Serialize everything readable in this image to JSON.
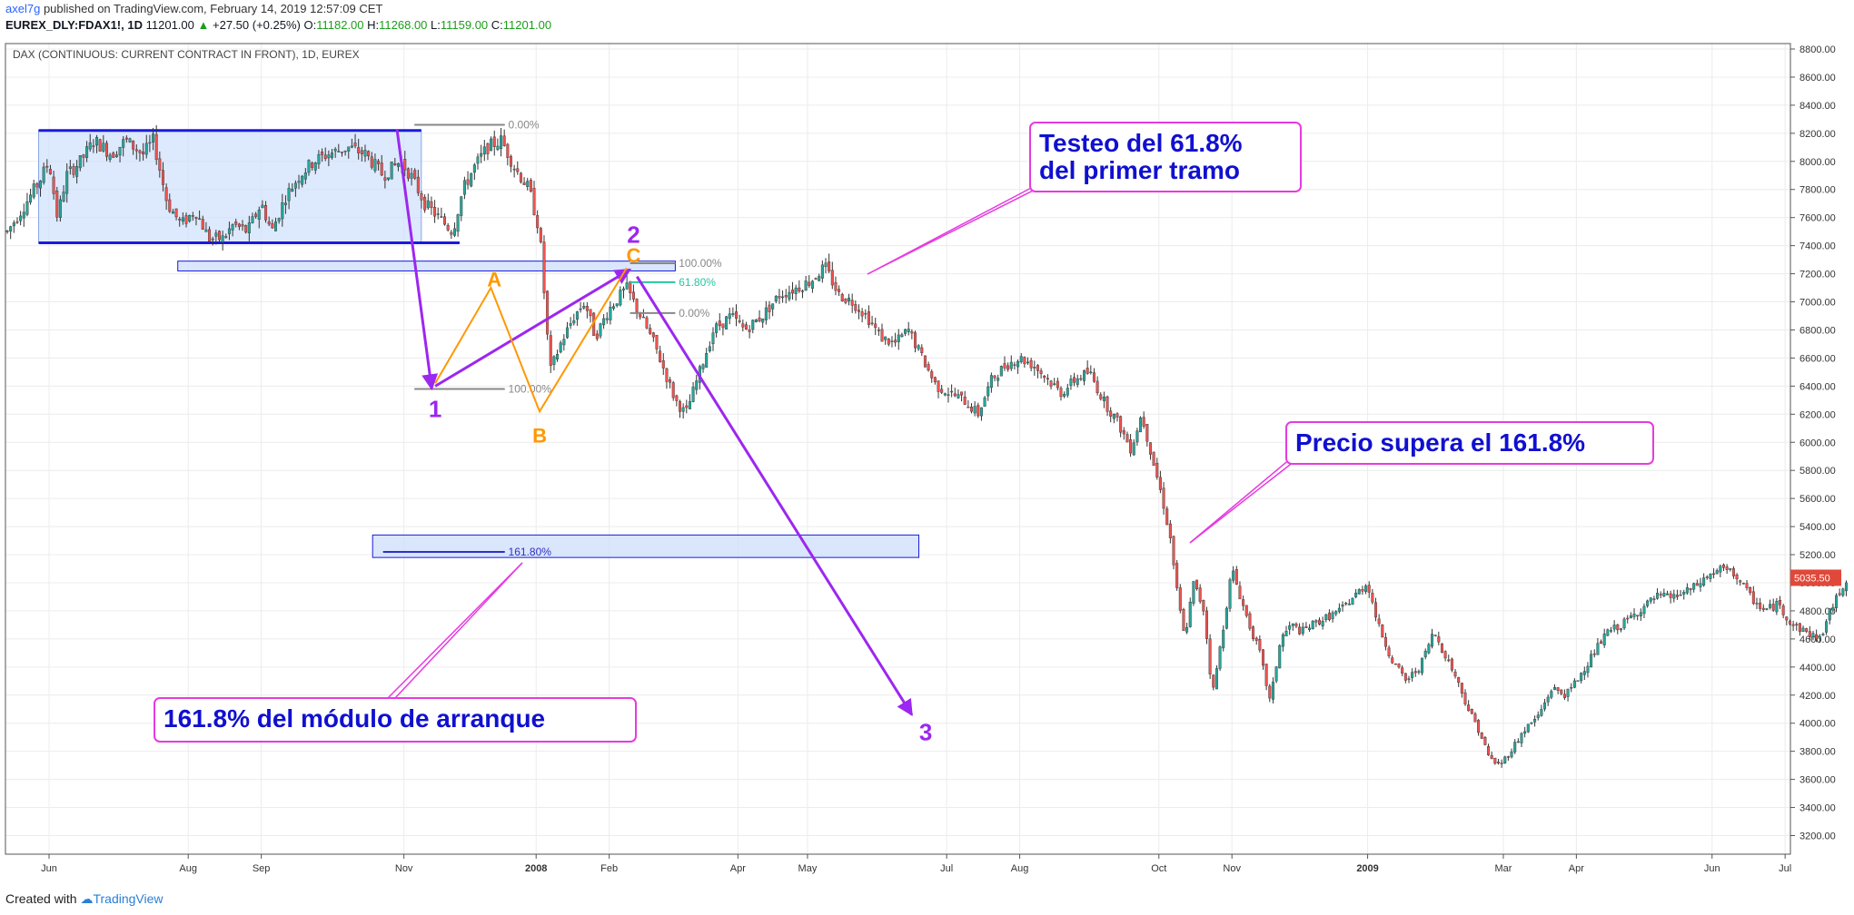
{
  "header": {
    "author": "axel7g",
    "published": "published on TradingView.com, February 14, 2019 12:57:09 CET",
    "symbol": "EUREX_DLY:FDAX1!, 1D",
    "last": "11201.00",
    "change": "+27.50 (+0.25%)",
    "o_label": "O:",
    "o_val": "11182.00",
    "h_label": "H:",
    "h_val": "11268.00",
    "l_label": "L:",
    "l_val": "11159.00",
    "c_label": "C:",
    "c_val": "11201.00"
  },
  "footer": {
    "created_with": "Created with",
    "brand": "TradingView"
  },
  "chart_data": {
    "type": "candlestick",
    "title": "DAX (CONTINUOUS: CURRENT CONTRACT IN FRONT), 1D, EUREX",
    "y_ticks": [
      3200,
      3400,
      3600,
      3800,
      4000,
      4200,
      4400,
      4600,
      4800,
      5000,
      5200,
      5400,
      5600,
      5800,
      6000,
      6200,
      6400,
      6600,
      6800,
      7000,
      7200,
      7400,
      7600,
      7800,
      8000,
      8200,
      8400,
      8600,
      8800
    ],
    "ylim": [
      2900,
      8950
    ],
    "x_ticks": [
      {
        "label": "Jun",
        "t": 0.0
      },
      {
        "label": "Aug",
        "t": 2.0
      },
      {
        "label": "Sep",
        "t": 3.05
      },
      {
        "label": "Nov",
        "t": 5.1
      },
      {
        "label": "2008",
        "t": 7.0
      },
      {
        "label": "Feb",
        "t": 8.05
      },
      {
        "label": "Apr",
        "t": 9.9
      },
      {
        "label": "May",
        "t": 10.9
      },
      {
        "label": "Jul",
        "t": 12.9
      },
      {
        "label": "Aug",
        "t": 13.95
      },
      {
        "label": "Oct",
        "t": 15.95
      },
      {
        "label": "Nov",
        "t": 17.0
      },
      {
        "label": "2009",
        "t": 18.95
      },
      {
        "label": "Mar",
        "t": 20.9
      },
      {
        "label": "Apr",
        "t": 21.95
      },
      {
        "label": "Jun",
        "t": 23.9
      },
      {
        "label": "Jul",
        "t": 24.95
      }
    ],
    "price_path": [
      [
        -0.6,
        7500
      ],
      [
        -0.4,
        7650
      ],
      [
        -0.15,
        7850
      ],
      [
        0.0,
        8000
      ],
      [
        0.12,
        7600
      ],
      [
        0.25,
        7900
      ],
      [
        0.45,
        8000
      ],
      [
        0.65,
        8150
      ],
      [
        0.9,
        8050
      ],
      [
        1.1,
        8150
      ],
      [
        1.35,
        8050
      ],
      [
        1.5,
        8150
      ],
      [
        1.7,
        7700
      ],
      [
        1.9,
        7550
      ],
      [
        2.1,
        7650
      ],
      [
        2.3,
        7450
      ],
      [
        2.5,
        7450
      ],
      [
        2.65,
        7550
      ],
      [
        2.85,
        7500
      ],
      [
        3.05,
        7700
      ],
      [
        3.2,
        7500
      ],
      [
        3.4,
        7750
      ],
      [
        3.6,
        7900
      ],
      [
        3.8,
        8000
      ],
      [
        4.0,
        8050
      ],
      [
        4.3,
        8100
      ],
      [
        4.55,
        8050
      ],
      [
        4.8,
        7900
      ],
      [
        5.05,
        8000
      ],
      [
        5.2,
        7900
      ],
      [
        5.4,
        7700
      ],
      [
        5.6,
        7600
      ],
      [
        5.8,
        7500
      ],
      [
        5.95,
        7800
      ],
      [
        6.1,
        7950
      ],
      [
        6.3,
        8100
      ],
      [
        6.5,
        8150
      ],
      [
        6.7,
        7950
      ],
      [
        6.9,
        7800
      ],
      [
        7.05,
        7500
      ],
      [
        7.2,
        6500
      ],
      [
        7.35,
        6700
      ],
      [
        7.55,
        6900
      ],
      [
        7.7,
        7000
      ],
      [
        7.85,
        6750
      ],
      [
        8.05,
        6950
      ],
      [
        8.3,
        7100
      ],
      [
        8.5,
        6900
      ],
      [
        8.7,
        6700
      ],
      [
        8.85,
        6500
      ],
      [
        9.0,
        6300
      ],
      [
        9.15,
        6200
      ],
      [
        9.35,
        6500
      ],
      [
        9.55,
        6800
      ],
      [
        9.8,
        6900
      ],
      [
        10.0,
        6800
      ],
      [
        10.25,
        6900
      ],
      [
        10.5,
        7050
      ],
      [
        10.75,
        7100
      ],
      [
        10.95,
        7150
      ],
      [
        11.15,
        7250
      ],
      [
        11.35,
        7050
      ],
      [
        11.55,
        7000
      ],
      [
        11.75,
        6900
      ],
      [
        11.95,
        6750
      ],
      [
        12.15,
        6700
      ],
      [
        12.35,
        6800
      ],
      [
        12.55,
        6600
      ],
      [
        12.75,
        6400
      ],
      [
        12.95,
        6350
      ],
      [
        13.15,
        6300
      ],
      [
        13.35,
        6200
      ],
      [
        13.55,
        6450
      ],
      [
        13.75,
        6550
      ],
      [
        13.95,
        6600
      ],
      [
        14.15,
        6550
      ],
      [
        14.35,
        6450
      ],
      [
        14.55,
        6350
      ],
      [
        14.75,
        6450
      ],
      [
        14.95,
        6500
      ],
      [
        15.15,
        6300
      ],
      [
        15.35,
        6150
      ],
      [
        15.55,
        5950
      ],
      [
        15.7,
        6200
      ],
      [
        15.85,
        5900
      ],
      [
        16.0,
        5600
      ],
      [
        16.12,
        5300
      ],
      [
        16.22,
        4900
      ],
      [
        16.32,
        4600
      ],
      [
        16.45,
        5000
      ],
      [
        16.6,
        4800
      ],
      [
        16.72,
        4200
      ],
      [
        16.85,
        4600
      ],
      [
        17.0,
        5100
      ],
      [
        17.12,
        4900
      ],
      [
        17.25,
        4700
      ],
      [
        17.4,
        4500
      ],
      [
        17.55,
        4150
      ],
      [
        17.7,
        4600
      ],
      [
        17.85,
        4700
      ],
      [
        18.0,
        4650
      ],
      [
        18.15,
        4700
      ],
      [
        18.35,
        4750
      ],
      [
        18.55,
        4800
      ],
      [
        18.75,
        4900
      ],
      [
        18.95,
        5000
      ],
      [
        19.1,
        4700
      ],
      [
        19.3,
        4450
      ],
      [
        19.5,
        4300
      ],
      [
        19.7,
        4400
      ],
      [
        19.9,
        4650
      ],
      [
        20.05,
        4500
      ],
      [
        20.2,
        4350
      ],
      [
        20.4,
        4100
      ],
      [
        20.55,
        3950
      ],
      [
        20.7,
        3750
      ],
      [
        20.85,
        3700
      ],
      [
        21.0,
        3800
      ],
      [
        21.2,
        3950
      ],
      [
        21.4,
        4050
      ],
      [
        21.6,
        4250
      ],
      [
        21.8,
        4200
      ],
      [
        21.95,
        4300
      ],
      [
        22.2,
        4500
      ],
      [
        22.4,
        4650
      ],
      [
        22.6,
        4700
      ],
      [
        22.85,
        4800
      ],
      [
        23.1,
        4900
      ],
      [
        23.35,
        4900
      ],
      [
        23.6,
        4950
      ],
      [
        23.85,
        5050
      ],
      [
        24.05,
        5100
      ],
      [
        24.25,
        5050
      ],
      [
        24.45,
        4900
      ],
      [
        24.65,
        4800
      ],
      [
        24.85,
        4850
      ],
      [
        25.05,
        4700
      ],
      [
        25.25,
        4650
      ],
      [
        25.45,
        4600
      ],
      [
        25.6,
        4800
      ],
      [
        25.75,
        4950
      ],
      [
        25.85,
        5040
      ]
    ],
    "last_price_label": "5035.50",
    "fib_levels": [
      {
        "label": "0.00%",
        "price": 8260
      },
      {
        "label": "100.00%",
        "price": 6380
      },
      {
        "label": "161.80%",
        "price": 5220
      },
      {
        "label": "100.00%",
        "price": 7275
      },
      {
        "label": "61.80%",
        "price": 7140
      },
      {
        "label": "0.00%",
        "price": 6920
      }
    ],
    "wave_labels": [
      "1",
      "2",
      "3"
    ],
    "abc_labels": [
      "A",
      "B",
      "C"
    ],
    "annotations": [
      {
        "id": "testeo",
        "lines": [
          "Testeo del 61.8%",
          "del primer tramo"
        ]
      },
      {
        "id": "supera",
        "lines": [
          "Precio supera el 161.8%"
        ]
      },
      {
        "id": "arranque",
        "lines": [
          "161.8% del módulo de arranque"
        ]
      }
    ],
    "colors": {
      "up": "#26a69a",
      "down": "#ef5350",
      "body": "#333333",
      "wave": "#9c27f0",
      "abc": "#ff9800",
      "box_fill": "#cfe0fb",
      "box_stroke": "#1a1adb",
      "callout_border": "#e53be0",
      "callout_text": "#1010d0",
      "fib_gray": "#888888",
      "fib_green": "#26c6a0",
      "fib_blue": "#3030c0",
      "price_tag": "#e0493a"
    }
  }
}
